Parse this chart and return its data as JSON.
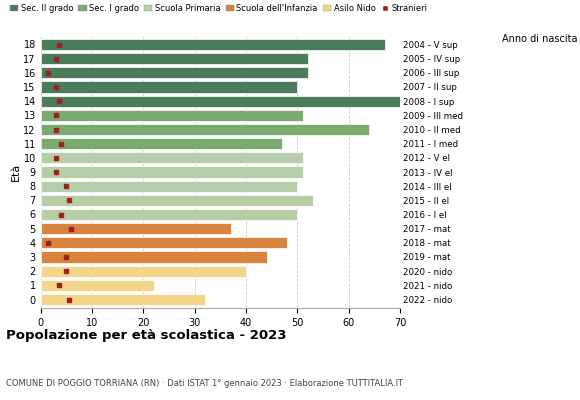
{
  "ages": [
    18,
    17,
    16,
    15,
    14,
    13,
    12,
    11,
    10,
    9,
    8,
    7,
    6,
    5,
    4,
    3,
    2,
    1,
    0
  ],
  "anno_nascita": [
    "2004 - V sup",
    "2005 - IV sup",
    "2006 - III sup",
    "2007 - II sup",
    "2008 - I sup",
    "2009 - III med",
    "2010 - II med",
    "2011 - I med",
    "2012 - V el",
    "2013 - IV el",
    "2014 - III el",
    "2015 - II el",
    "2016 - I el",
    "2017 - mat",
    "2018 - mat",
    "2019 - mat",
    "2020 - nido",
    "2021 - nido",
    "2022 - nido"
  ],
  "bar_values": [
    67,
    52,
    52,
    50,
    70,
    51,
    64,
    47,
    51,
    51,
    50,
    53,
    50,
    37,
    48,
    44,
    40,
    22,
    32
  ],
  "stranieri": [
    3.5,
    3.0,
    1.5,
    3.0,
    3.5,
    3.0,
    3.0,
    4.0,
    3.0,
    3.0,
    5.0,
    5.5,
    4.0,
    6.0,
    1.5,
    5.0,
    5.0,
    3.5,
    5.5
  ],
  "bar_colors": [
    "#4a7c59",
    "#4a7c59",
    "#4a7c59",
    "#4a7c59",
    "#4a7c59",
    "#7aaa6e",
    "#7aaa6e",
    "#7aaa6e",
    "#b5cea8",
    "#b5cea8",
    "#b5cea8",
    "#b5cea8",
    "#b5cea8",
    "#d9843e",
    "#d9843e",
    "#d9843e",
    "#f5d589",
    "#f5d589",
    "#f5d589"
  ],
  "legend_labels": [
    "Sec. II grado",
    "Sec. I grado",
    "Scuola Primaria",
    "Scuola dell'Infanzia",
    "Asilo Nido",
    "Stranieri"
  ],
  "legend_colors": [
    "#4a7c59",
    "#7aaa6e",
    "#b5cea8",
    "#d9843e",
    "#f5d589",
    "#a02020"
  ],
  "stranieri_color": "#a02020",
  "title": "Popolazione per età scolastica - 2023",
  "subtitle": "COMUNE DI POGGIO TORRIANA (RN) · Dati ISTAT 1° gennaio 2023 · Elaborazione TUTTITALIA.IT",
  "ylabel": "Età",
  "anno_label": "Anno di nascita",
  "xlim": [
    0,
    70
  ],
  "xticks": [
    0,
    10,
    20,
    30,
    40,
    50,
    60,
    70
  ],
  "background_color": "#ffffff",
  "grid_color": "#cccccc"
}
